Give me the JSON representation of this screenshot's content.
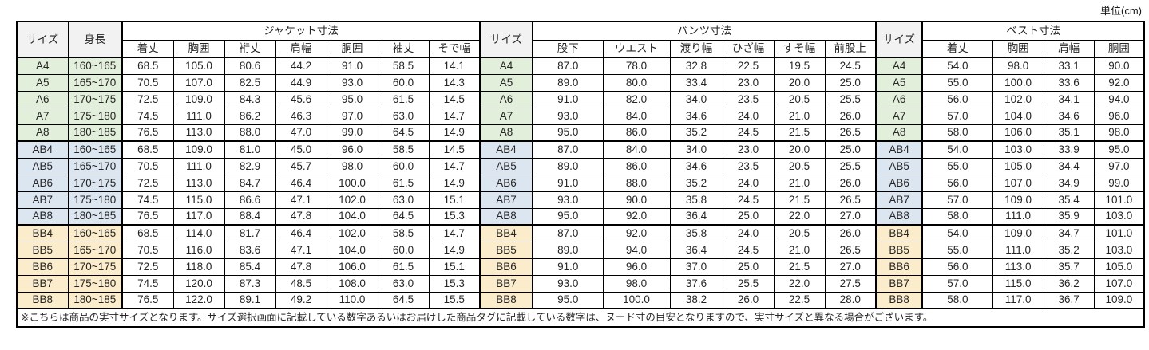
{
  "unit_label": "単位(cm)",
  "colors": {
    "group_a": "#e2efda",
    "group_ab": "#dce6f1",
    "group_bb": "#fbedcb",
    "header_bg": "#f2f2f2",
    "border": "#000000",
    "text": "#262626"
  },
  "header": {
    "size_label": "サイズ",
    "height_label": "身長",
    "jacket_title": "ジャケット寸法",
    "jacket_columns": [
      "着丈",
      "胸囲",
      "裄丈",
      "肩幅",
      "胴囲",
      "袖丈",
      "そで幅"
    ],
    "pants_title": "パンツ寸法",
    "pants_columns": [
      "股下",
      "ウエスト",
      "渡り幅",
      "ひざ幅",
      "すそ幅",
      "前股上"
    ],
    "vest_title": "ベスト寸法",
    "vest_columns": [
      "着丈",
      "胸囲",
      "肩幅",
      "胴囲"
    ]
  },
  "rows": [
    {
      "size": "A4",
      "group": "a",
      "height": "160~165",
      "jacket": [
        "68.5",
        "105.0",
        "80.6",
        "44.2",
        "91.0",
        "58.5",
        "14.1"
      ],
      "pants": [
        "87.0",
        "78.0",
        "32.8",
        "22.5",
        "19.5",
        "24.5"
      ],
      "vest": [
        "54.0",
        "98.0",
        "33.1",
        "90.0"
      ]
    },
    {
      "size": "A5",
      "group": "a",
      "height": "165~170",
      "jacket": [
        "70.5",
        "107.0",
        "82.5",
        "44.9",
        "93.0",
        "60.0",
        "14.3"
      ],
      "pants": [
        "89.0",
        "80.0",
        "33.4",
        "23.0",
        "20.0",
        "25.0"
      ],
      "vest": [
        "55.0",
        "100.0",
        "33.6",
        "92.0"
      ]
    },
    {
      "size": "A6",
      "group": "a",
      "height": "170~175",
      "jacket": [
        "72.5",
        "109.0",
        "84.3",
        "45.6",
        "95.0",
        "61.5",
        "14.5"
      ],
      "pants": [
        "91.0",
        "82.0",
        "34.0",
        "23.5",
        "20.5",
        "25.5"
      ],
      "vest": [
        "56.0",
        "102.0",
        "34.1",
        "94.0"
      ]
    },
    {
      "size": "A7",
      "group": "a",
      "height": "175~180",
      "jacket": [
        "74.5",
        "111.0",
        "86.2",
        "46.3",
        "97.0",
        "63.0",
        "14.7"
      ],
      "pants": [
        "93.0",
        "84.0",
        "34.6",
        "24.0",
        "21.0",
        "26.0"
      ],
      "vest": [
        "57.0",
        "104.0",
        "34.6",
        "96.0"
      ]
    },
    {
      "size": "A8",
      "group": "a",
      "height": "180~185",
      "jacket": [
        "76.5",
        "113.0",
        "88.0",
        "47.0",
        "99.0",
        "64.5",
        "14.9"
      ],
      "pants": [
        "95.0",
        "86.0",
        "35.2",
        "24.5",
        "21.5",
        "26.5"
      ],
      "vest": [
        "58.0",
        "106.0",
        "35.1",
        "98.0"
      ]
    },
    {
      "size": "AB4",
      "group": "ab",
      "height": "160~165",
      "jacket": [
        "68.5",
        "109.0",
        "81.0",
        "45.0",
        "96.0",
        "58.5",
        "14.5"
      ],
      "pants": [
        "87.0",
        "84.0",
        "34.0",
        "23.0",
        "20.0",
        "25.0"
      ],
      "vest": [
        "54.0",
        "103.0",
        "33.9",
        "95.0"
      ]
    },
    {
      "size": "AB5",
      "group": "ab",
      "height": "165~170",
      "jacket": [
        "70.5",
        "111.0",
        "82.9",
        "45.7",
        "98.0",
        "60.0",
        "14.7"
      ],
      "pants": [
        "89.0",
        "86.0",
        "34.6",
        "23.5",
        "20.5",
        "25.5"
      ],
      "vest": [
        "55.0",
        "105.0",
        "34.4",
        "97.0"
      ]
    },
    {
      "size": "AB6",
      "group": "ab",
      "height": "170~175",
      "jacket": [
        "72.5",
        "113.0",
        "84.7",
        "46.4",
        "100.0",
        "61.5",
        "14.9"
      ],
      "pants": [
        "91.0",
        "88.0",
        "35.2",
        "24.0",
        "21.0",
        "26.0"
      ],
      "vest": [
        "56.0",
        "107.0",
        "34.9",
        "99.0"
      ]
    },
    {
      "size": "AB7",
      "group": "ab",
      "height": "175~180",
      "jacket": [
        "74.5",
        "115.0",
        "86.6",
        "47.1",
        "102.0",
        "63.0",
        "15.1"
      ],
      "pants": [
        "93.0",
        "90.0",
        "35.8",
        "24.5",
        "21.5",
        "26.5"
      ],
      "vest": [
        "57.0",
        "109.0",
        "35.4",
        "101.0"
      ]
    },
    {
      "size": "AB8",
      "group": "ab",
      "height": "180~185",
      "jacket": [
        "76.5",
        "117.0",
        "88.4",
        "47.8",
        "104.0",
        "64.5",
        "15.3"
      ],
      "pants": [
        "95.0",
        "92.0",
        "36.4",
        "25.0",
        "22.0",
        "27.0"
      ],
      "vest": [
        "58.0",
        "111.0",
        "35.9",
        "103.0"
      ]
    },
    {
      "size": "BB4",
      "group": "bb",
      "height": "160~165",
      "jacket": [
        "68.5",
        "114.0",
        "81.7",
        "46.4",
        "102.0",
        "58.5",
        "14.7"
      ],
      "pants": [
        "87.0",
        "92.0",
        "35.8",
        "24.0",
        "20.5",
        "26.0"
      ],
      "vest": [
        "54.0",
        "109.0",
        "34.7",
        "101.0"
      ]
    },
    {
      "size": "BB5",
      "group": "bb",
      "height": "165~170",
      "jacket": [
        "70.5",
        "116.0",
        "83.6",
        "47.1",
        "104.0",
        "60.0",
        "14.9"
      ],
      "pants": [
        "89.0",
        "94.0",
        "36.4",
        "24.5",
        "21.0",
        "26.5"
      ],
      "vest": [
        "55.0",
        "111.0",
        "35.2",
        "103.0"
      ]
    },
    {
      "size": "BB6",
      "group": "bb",
      "height": "170~175",
      "jacket": [
        "72.5",
        "118.0",
        "85.4",
        "47.8",
        "106.0",
        "61.5",
        "15.1"
      ],
      "pants": [
        "91.0",
        "96.0",
        "37.0",
        "25.0",
        "21.5",
        "27.0"
      ],
      "vest": [
        "56.0",
        "113.0",
        "35.7",
        "105.0"
      ]
    },
    {
      "size": "BB7",
      "group": "bb",
      "height": "175~180",
      "jacket": [
        "74.5",
        "120.0",
        "87.3",
        "48.5",
        "108.0",
        "63.0",
        "15.3"
      ],
      "pants": [
        "93.0",
        "98.0",
        "37.6",
        "25.5",
        "22.0",
        "27.5"
      ],
      "vest": [
        "57.0",
        "115.0",
        "36.2",
        "107.0"
      ]
    },
    {
      "size": "BB8",
      "group": "bb",
      "height": "180~185",
      "jacket": [
        "76.5",
        "122.0",
        "89.1",
        "49.2",
        "110.0",
        "64.5",
        "15.5"
      ],
      "pants": [
        "95.0",
        "100.0",
        "38.2",
        "26.0",
        "22.5",
        "28.0"
      ],
      "vest": [
        "58.0",
        "117.0",
        "36.7",
        "109.0"
      ]
    }
  ],
  "footnote": "※こちらは商品の実寸サイズとなります。サイズ選択画面に記載している数字あるいはお届けした商品タグに記載している数字は、ヌード寸の目安となりますので、実寸サイズと異なる場合がございます。"
}
